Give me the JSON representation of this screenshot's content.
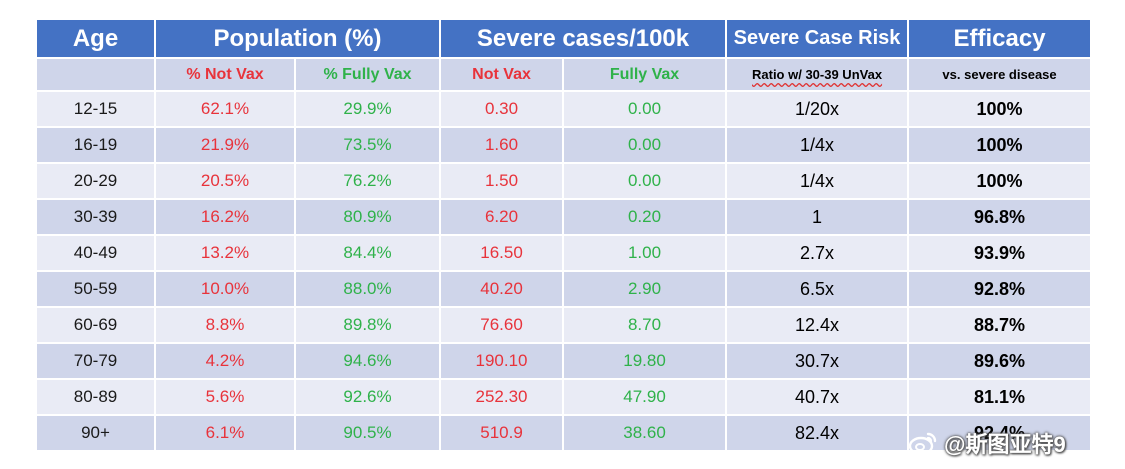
{
  "chart_data": {
    "type": "table",
    "header_groups": [
      "Age",
      "Population (%)",
      "Severe cases/100k",
      "Severe Case Risk",
      "Efficacy"
    ],
    "subheaders": [
      "",
      "% Not Vax",
      "% Fully Vax",
      "Not Vax",
      "Fully Vax",
      "Ratio w/ 30-39 UnVax",
      "vs. severe disease"
    ],
    "rows": [
      {
        "age": "12-15",
        "pop_not_vax": "62.1%",
        "pop_fully_vax": "29.9%",
        "severe_not_vax": "0.30",
        "severe_fully_vax": "0.00",
        "risk_ratio": "1/20x",
        "efficacy": "100%"
      },
      {
        "age": "16-19",
        "pop_not_vax": "21.9%",
        "pop_fully_vax": "73.5%",
        "severe_not_vax": "1.60",
        "severe_fully_vax": "0.00",
        "risk_ratio": "1/4x",
        "efficacy": "100%"
      },
      {
        "age": "20-29",
        "pop_not_vax": "20.5%",
        "pop_fully_vax": "76.2%",
        "severe_not_vax": "1.50",
        "severe_fully_vax": "0.00",
        "risk_ratio": "1/4x",
        "efficacy": "100%"
      },
      {
        "age": "30-39",
        "pop_not_vax": "16.2%",
        "pop_fully_vax": "80.9%",
        "severe_not_vax": "6.20",
        "severe_fully_vax": "0.20",
        "risk_ratio": "1",
        "efficacy": "96.8%"
      },
      {
        "age": "40-49",
        "pop_not_vax": "13.2%",
        "pop_fully_vax": "84.4%",
        "severe_not_vax": "16.50",
        "severe_fully_vax": "1.00",
        "risk_ratio": "2.7x",
        "efficacy": "93.9%"
      },
      {
        "age": "50-59",
        "pop_not_vax": "10.0%",
        "pop_fully_vax": "88.0%",
        "severe_not_vax": "40.20",
        "severe_fully_vax": "2.90",
        "risk_ratio": "6.5x",
        "efficacy": "92.8%"
      },
      {
        "age": "60-69",
        "pop_not_vax": "8.8%",
        "pop_fully_vax": "89.8%",
        "severe_not_vax": "76.60",
        "severe_fully_vax": "8.70",
        "risk_ratio": "12.4x",
        "efficacy": "88.7%"
      },
      {
        "age": "70-79",
        "pop_not_vax": "4.2%",
        "pop_fully_vax": "94.6%",
        "severe_not_vax": "190.10",
        "severe_fully_vax": "19.80",
        "risk_ratio": "30.7x",
        "efficacy": "89.6%"
      },
      {
        "age": "80-89",
        "pop_not_vax": "5.6%",
        "pop_fully_vax": "92.6%",
        "severe_not_vax": "252.30",
        "severe_fully_vax": "47.90",
        "risk_ratio": "40.7x",
        "efficacy": "81.1%"
      },
      {
        "age": "90+",
        "pop_not_vax": "6.1%",
        "pop_fully_vax": "90.5%",
        "severe_not_vax": "510.9",
        "severe_fully_vax": "38.60",
        "risk_ratio": "82.4x",
        "efficacy": "92.4%"
      }
    ]
  },
  "colors": {
    "header_blue": "#4472c4",
    "subheader_bg": "#cfd5ea",
    "row_light": "#e9ebf5",
    "row_dark": "#cfd5ea",
    "not_vax_red": "#e8333b",
    "fully_vax_green": "#2fb24a"
  },
  "watermark": {
    "text": "@斯图亚特9",
    "icon": "weibo-icon"
  }
}
